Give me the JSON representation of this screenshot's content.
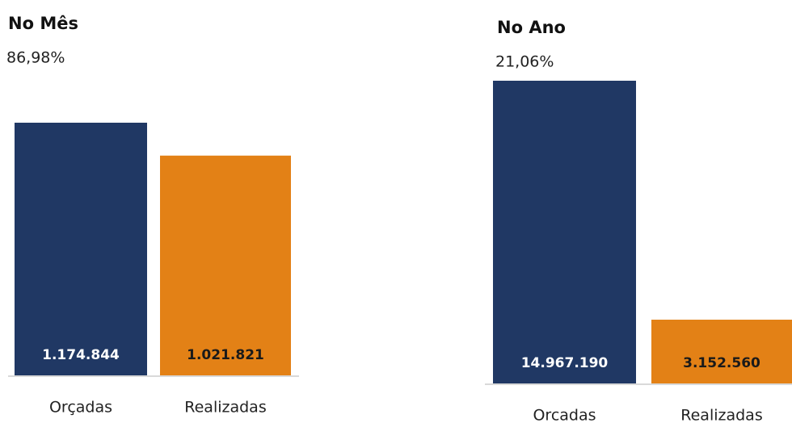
{
  "chart_data": [
    {
      "type": "bar",
      "title": "No Mês",
      "subtitle": "86,98%",
      "categories": [
        "Orçadas",
        "Realizadas"
      ],
      "values": [
        1174844,
        1021821
      ],
      "value_labels": [
        "1.174.844",
        "1.021.821"
      ],
      "colors": [
        "#203864",
        "#e38116"
      ]
    },
    {
      "type": "bar",
      "title": "No Ano",
      "subtitle": "21,06%",
      "categories": [
        "Orcadas",
        "Realizadas"
      ],
      "values": [
        14967190,
        3152560
      ],
      "value_labels": [
        "14.967.190",
        "3.152.560"
      ],
      "colors": [
        "#203864",
        "#e38116"
      ]
    }
  ]
}
